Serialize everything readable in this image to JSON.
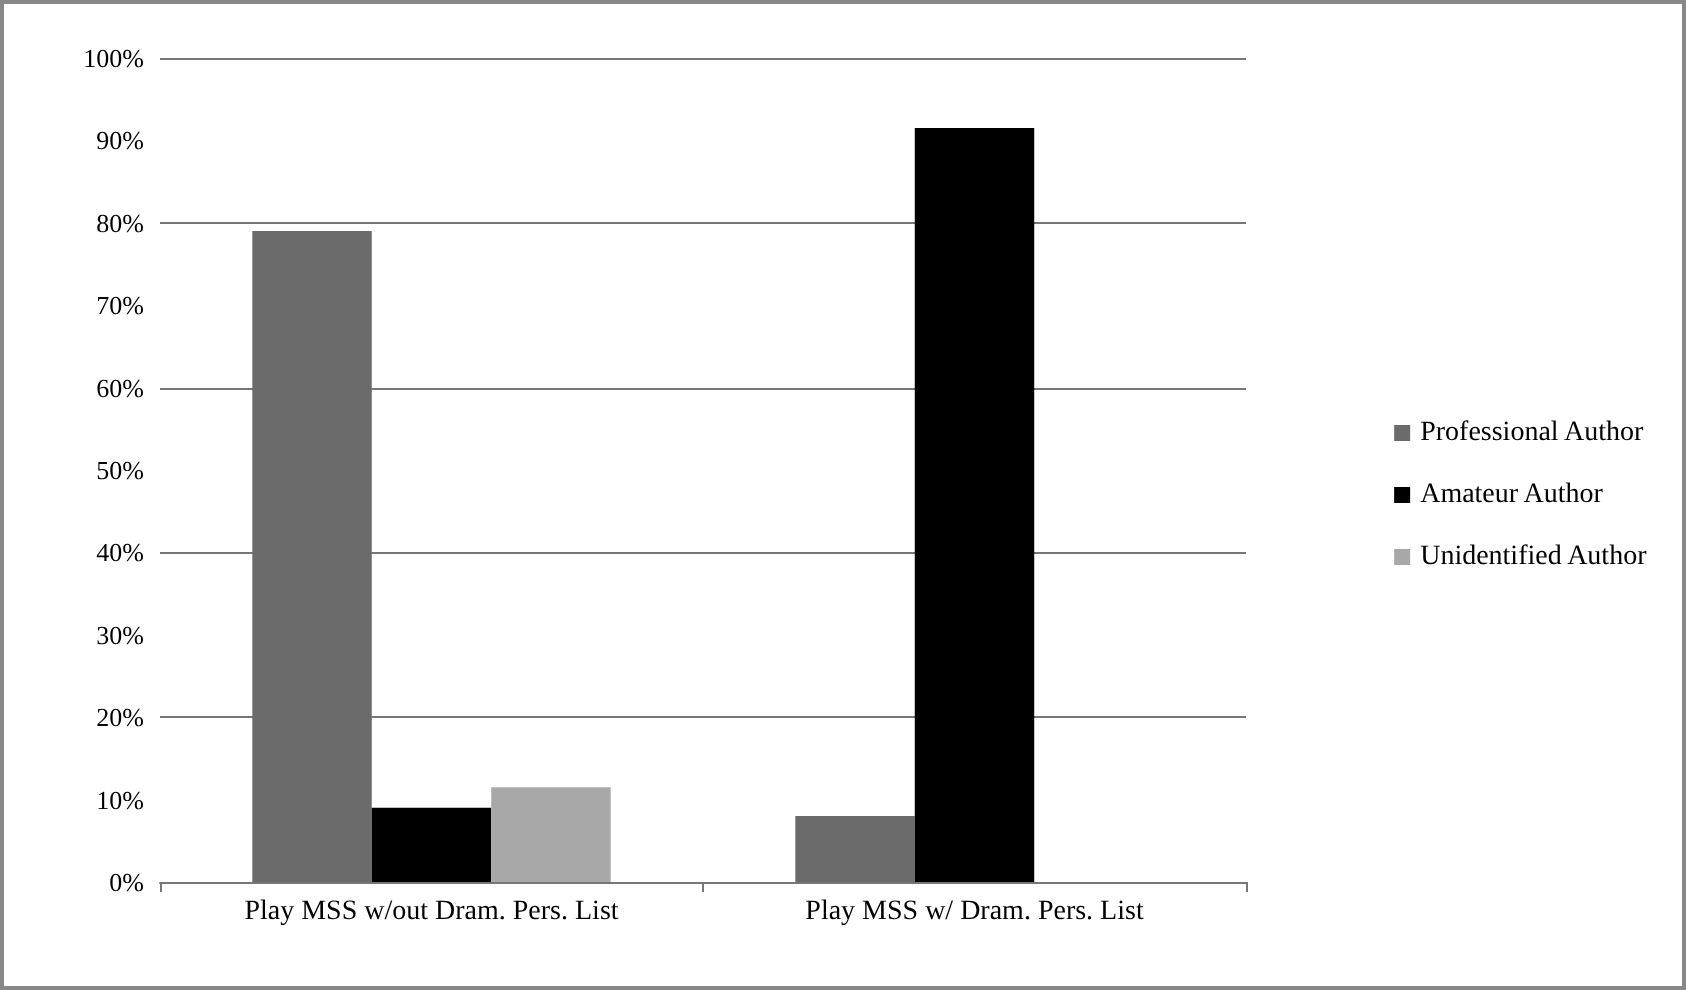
{
  "chart_data": {
    "type": "bar",
    "categories": [
      "Play MSS w/out Dram. Pers. List",
      "Play MSS w/ Dram. Pers. List"
    ],
    "series": [
      {
        "name": "Professional Author",
        "color": "#6b6b6b",
        "values": [
          79,
          8
        ]
      },
      {
        "name": "Amateur Author",
        "color": "#000000",
        "values": [
          9,
          91.5
        ]
      },
      {
        "name": "Unidentified Author",
        "color": "#a8a8a8",
        "values": [
          11.5,
          0
        ]
      }
    ],
    "ylim": [
      0,
      100
    ],
    "yticks": [
      {
        "value": 0,
        "label": "0%"
      },
      {
        "value": 10,
        "label": "10%"
      },
      {
        "value": 20,
        "label": "20%"
      },
      {
        "value": 30,
        "label": "30%"
      },
      {
        "value": 40,
        "label": "40%"
      },
      {
        "value": 50,
        "label": "50%"
      },
      {
        "value": 60,
        "label": "60%"
      },
      {
        "value": 70,
        "label": "70%"
      },
      {
        "value": 80,
        "label": "80%"
      },
      {
        "value": 90,
        "label": "90%"
      },
      {
        "value": 100,
        "label": "100%"
      }
    ],
    "grid": "y",
    "legend": "right"
  }
}
